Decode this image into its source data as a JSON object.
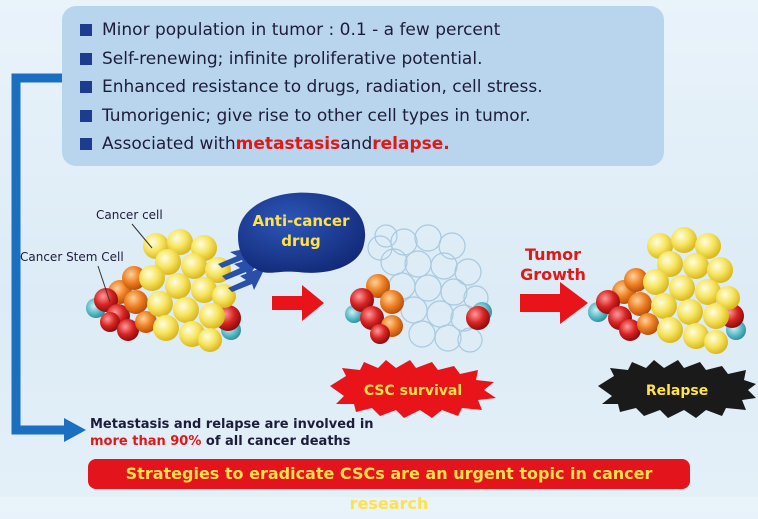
{
  "bullets": [
    {
      "text": "Minor population in tumor : 0.1 - a few percent"
    },
    {
      "text": "Self-renewing; infinite proliferative potential."
    },
    {
      "text": "Enhanced resistance to drugs, radiation, cell stress."
    },
    {
      "text": "Tumorigenic; give rise to other cell types in tumor."
    },
    {
      "pre": "Associated with ",
      "red1": "metastasis",
      "mid": " and ",
      "red2": "relapse."
    }
  ],
  "labels": {
    "cancer_cell": "Cancer cell",
    "cancer_stem_cell": "Cancer Stem Cell",
    "drug_line1": "Anti-cancer",
    "drug_line2": "drug",
    "tumor_growth_line1": "Tumor",
    "tumor_growth_line2": "Growth",
    "csc_survival": "CSC survival",
    "relapse": "Relapse"
  },
  "bottom": {
    "line1": "Metastasis and relapse are involved in",
    "highlight": "more than 90%",
    "line2_rest": " of all cancer deaths",
    "banner": "Strategies to eradicate CSCs are an urgent topic in cancer research"
  },
  "colors": {
    "navy": "#1e3c8f",
    "bracket": "#1a6fc0",
    "red_accent": "#e01818",
    "cancer_cell": "#f5e25a",
    "csc_orange": "#ec7a1c",
    "csc_red": "#d82020",
    "csc_teal": "#4fb6c3"
  }
}
